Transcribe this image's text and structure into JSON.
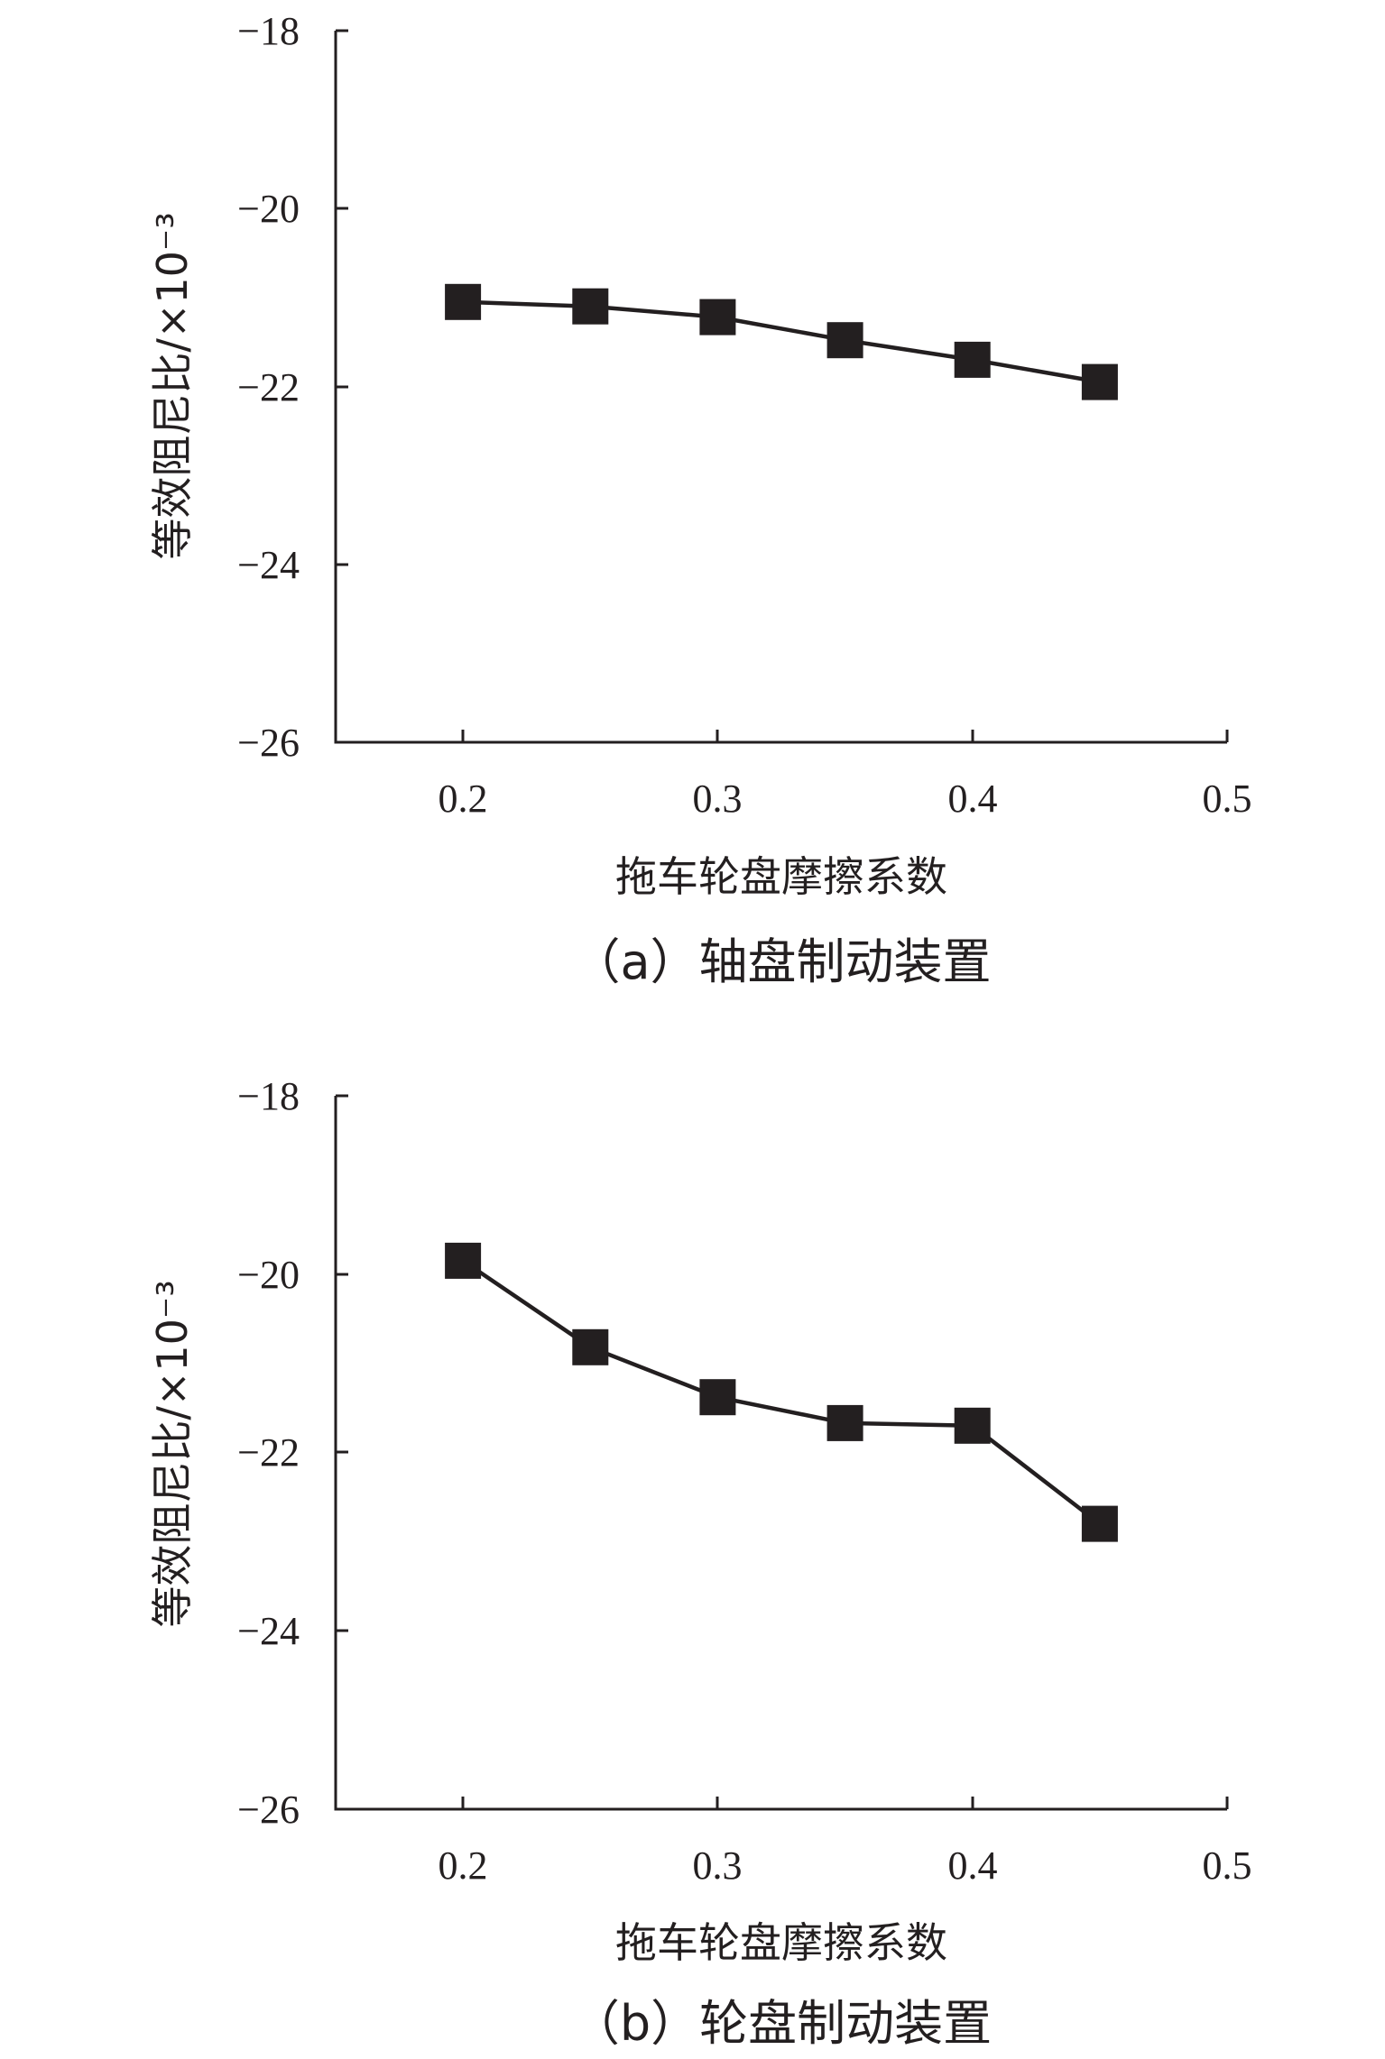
{
  "chart_data": [
    {
      "type": "line",
      "caption": "（a）轴盘制动装置",
      "xlabel": "拖车轮盘摩擦系数",
      "ylabel": "等效阻尼比/×10⁻³",
      "xlim": [
        0.15,
        0.5
      ],
      "ylim": [
        -26,
        -18
      ],
      "xticks": [
        "0.2",
        "0.3",
        "0.4",
        "0.5"
      ],
      "yticks": [
        "−18",
        "−20",
        "−22",
        "−24",
        "−26"
      ],
      "grid": false,
      "marker": "square",
      "color": "#231f20",
      "x": [
        0.2,
        0.25,
        0.3,
        0.35,
        0.4,
        0.45
      ],
      "values": [
        -21.05,
        -21.1,
        -21.22,
        -21.48,
        -21.7,
        -21.95
      ]
    },
    {
      "type": "line",
      "caption": "（b）轮盘制动装置",
      "xlabel": "拖车轮盘摩擦系数",
      "ylabel": "等效阻尼比/×10⁻³",
      "xlim": [
        0.15,
        0.5
      ],
      "ylim": [
        -26,
        -18
      ],
      "xticks": [
        "0.2",
        "0.3",
        "0.4",
        "0.5"
      ],
      "yticks": [
        "−18",
        "−20",
        "−22",
        "−24",
        "−26"
      ],
      "grid": false,
      "marker": "square",
      "color": "#231f20",
      "x": [
        0.2,
        0.25,
        0.3,
        0.35,
        0.4,
        0.45
      ],
      "values": [
        -19.85,
        -20.82,
        -21.38,
        -21.67,
        -21.7,
        -22.8
      ]
    }
  ]
}
